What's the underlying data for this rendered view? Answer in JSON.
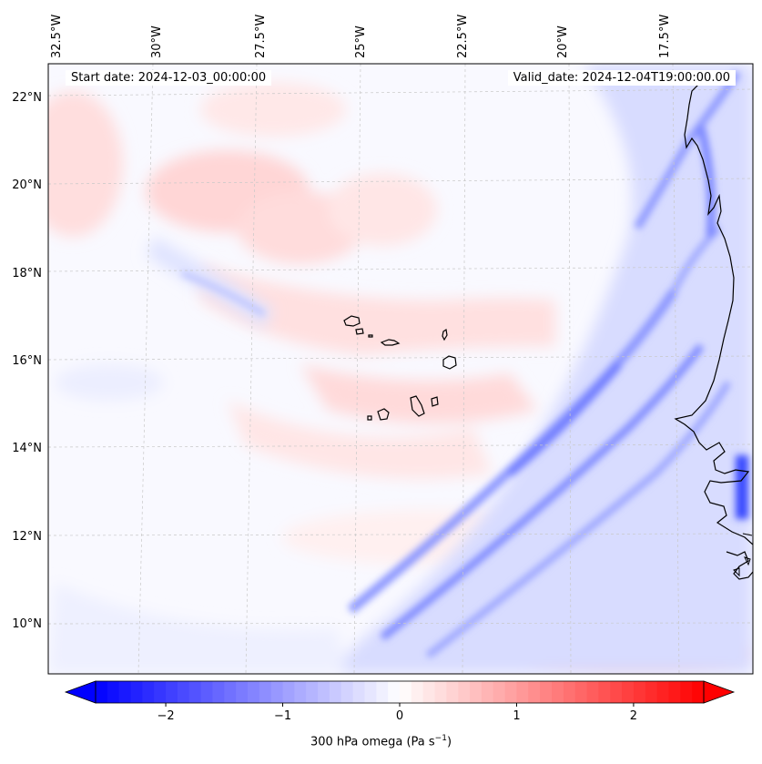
{
  "map": {
    "start_date": "Start date: 2024-12-03_00:00:00",
    "valid_date": "Valid_date: 2024-12-04T19:00:00.00",
    "lon_ticks": [
      "32.5°W",
      "30°W",
      "27.5°W",
      "25°W",
      "22.5°W",
      "20°W",
      "17.5°W"
    ],
    "lat_ticks": [
      "22°N",
      "20°N",
      "18°N",
      "16°N",
      "14°N",
      "12°N",
      "10°N"
    ],
    "field": "300 hPa omega",
    "units_base": "(Pa s",
    "units_exp": "−1",
    "units_close": ")"
  },
  "colorbar": {
    "min": -2.6,
    "max": 2.6,
    "ticks": [
      -2,
      -1,
      0,
      1,
      2
    ],
    "tick_labels": [
      "−2",
      "−1",
      "0",
      "1",
      "2"
    ],
    "negative_color": "#0000ff",
    "zero_color": "#ffffff",
    "positive_color": "#ff0000"
  },
  "features": {
    "coastline_color": "#000000",
    "grid_color": "#c8c8c8"
  }
}
